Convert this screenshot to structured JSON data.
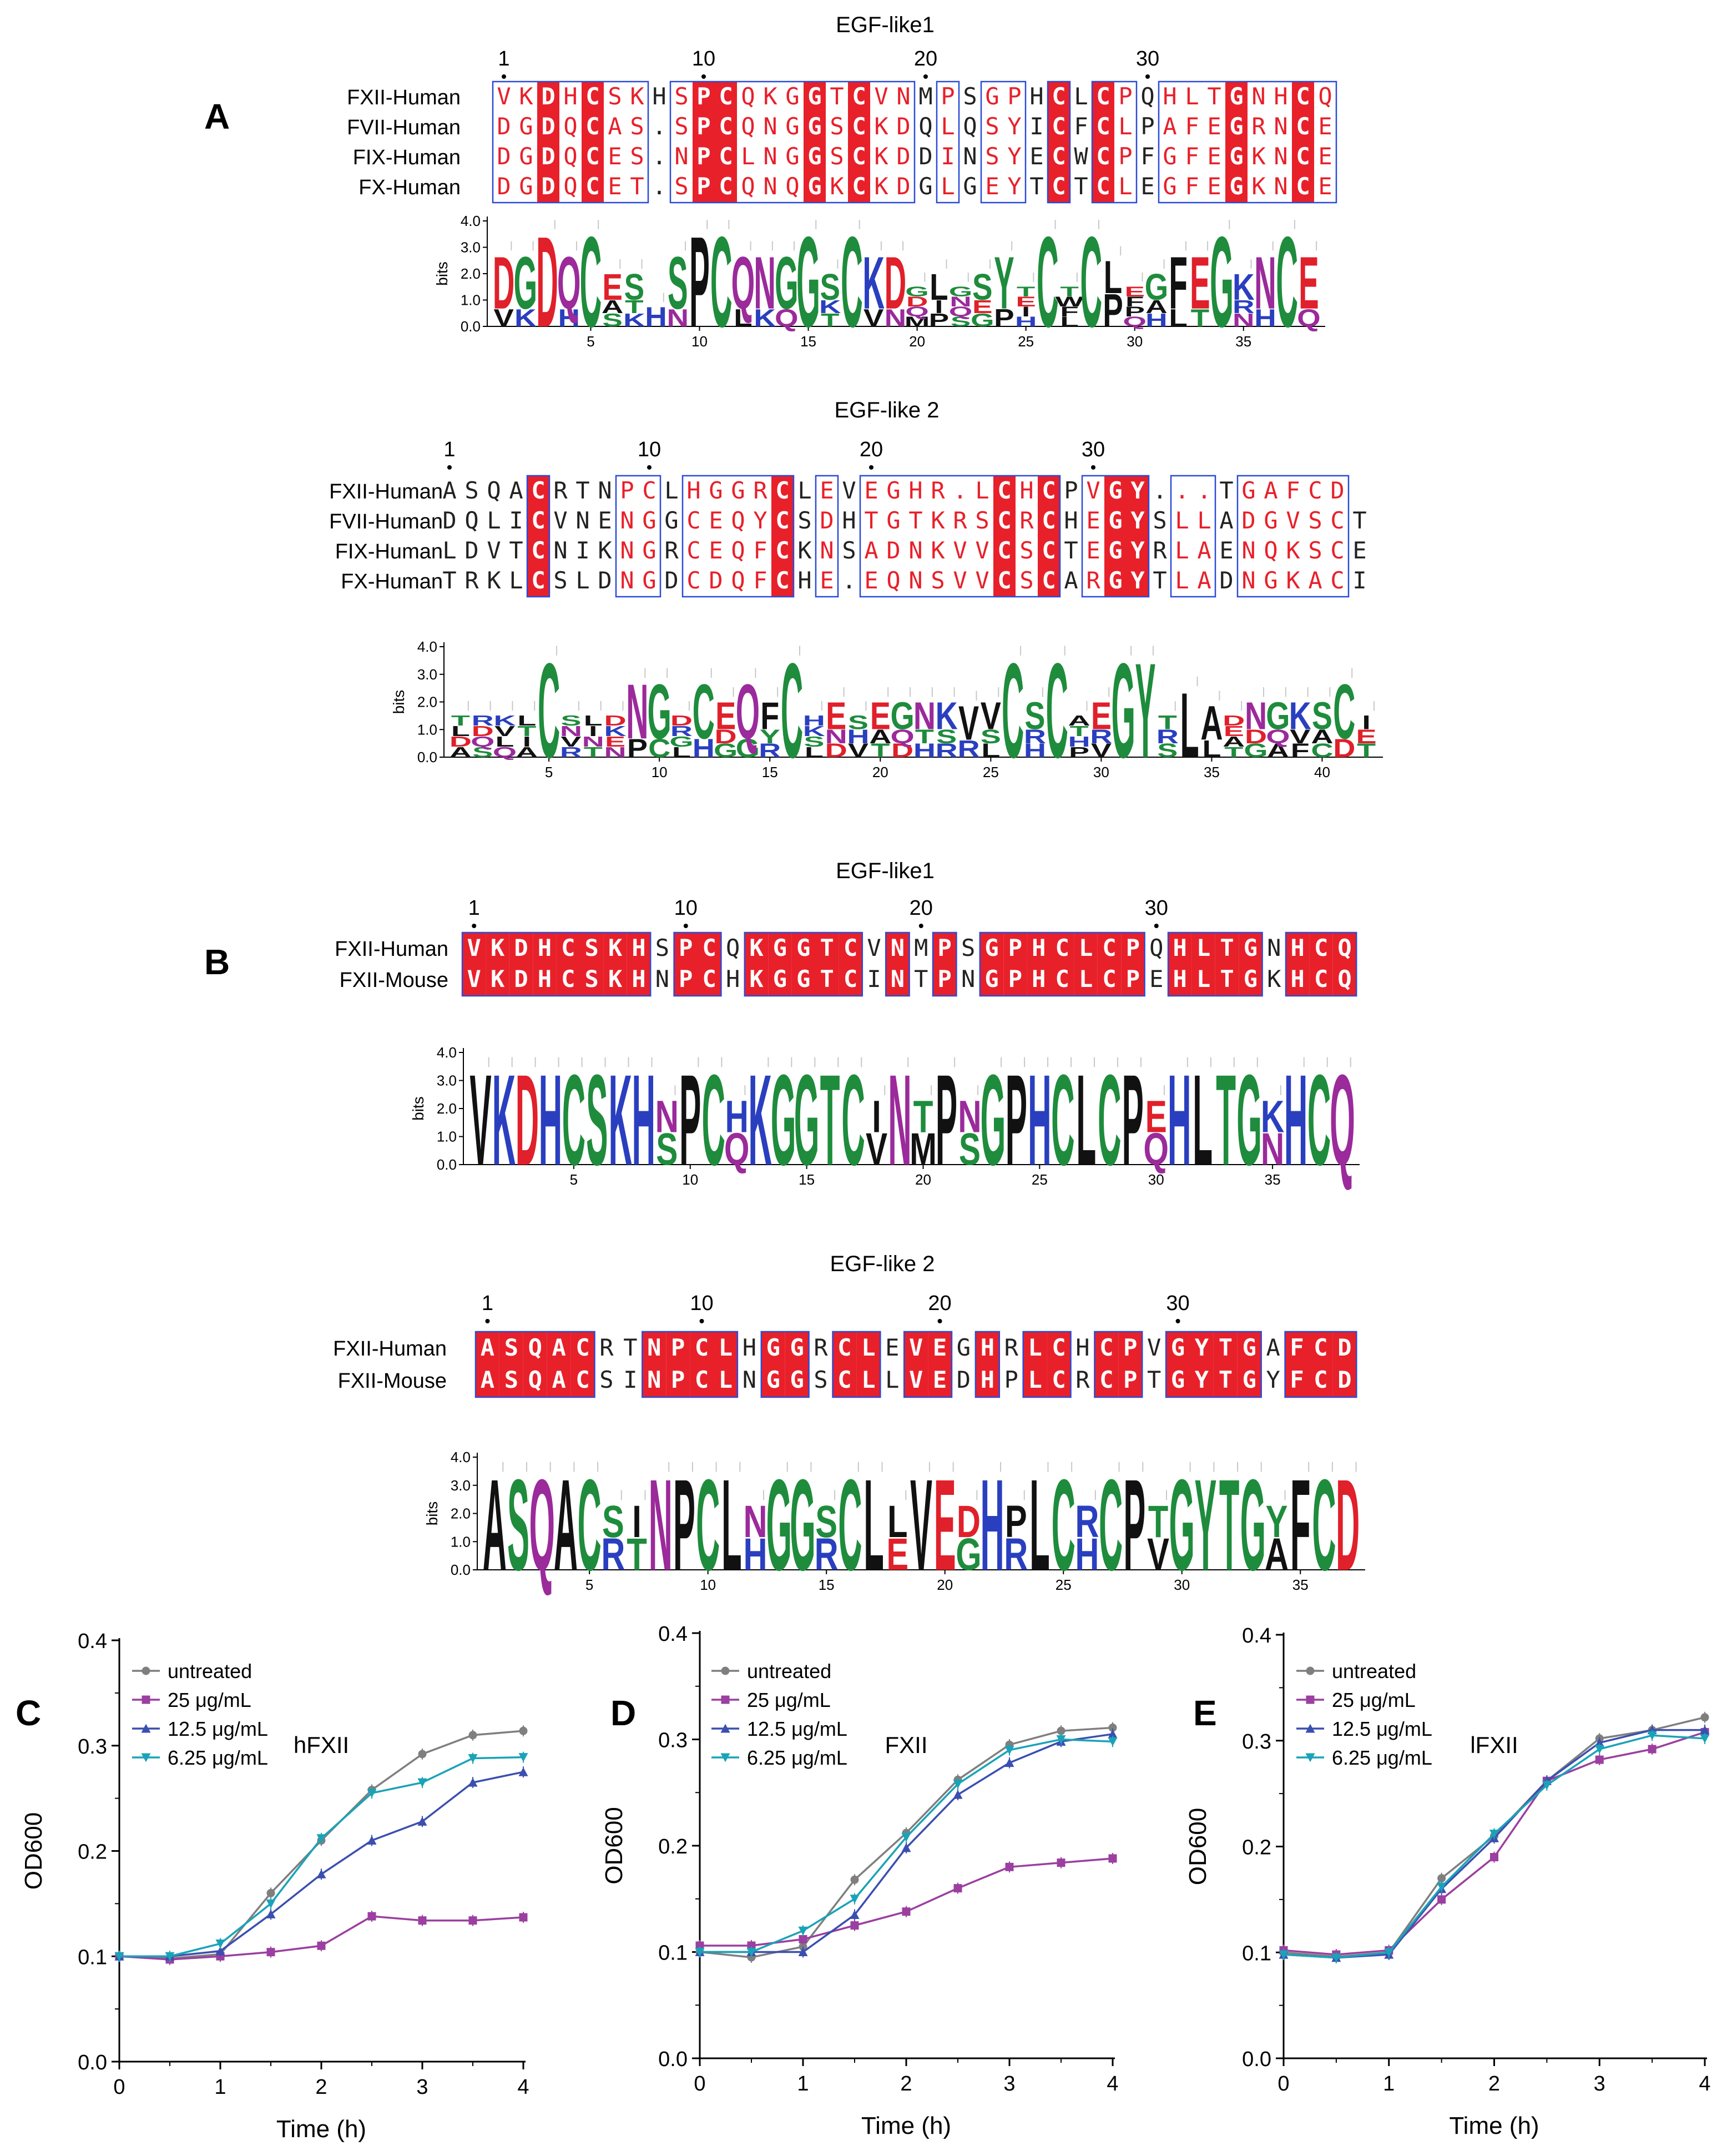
{
  "panels": {
    "A": {
      "label": "A",
      "alignments": [
        {
          "title": "EGF-like1",
          "ruler": [
            "1",
            "10",
            "20",
            "30"
          ],
          "rows": [
            {
              "name": "FXII-Human",
              "seq": "VKDHCSKHSPCQKGGTCVNMPSGPHCLCPQHLTGNHCQ"
            },
            {
              "name": "FVII-Human",
              "seq": "DGDQCAS.SPCQNGGSCKDQLQSYICFCLPAFEGRNCE"
            },
            {
              "name": "FIX-Human",
              "seq": "DGDQCES.NPCLNGGSCKDDINSYECWCPFGFEGKNCE"
            },
            {
              "name": "FX-Human",
              "seq": "DGDQCET.SPCQNQGKCKDGLGEYTCTCLEGFEGKNCE"
            }
          ],
          "logo": {
            "yticks": [
              "0.0",
              "1.0",
              "2.0",
              "3.0",
              "4.0"
            ],
            "ylabel": "bits",
            "xticks": [
              "5",
              "10",
              "15",
              "20",
              "25",
              "30",
              "35"
            ]
          }
        },
        {
          "title": "EGF-like 2",
          "ruler": [
            "1",
            "10",
            "20",
            "30"
          ],
          "rows": [
            {
              "name": "FXII-Human",
              "seq": "ASQACRTNPCLHGGRCLEVEGHR.LCHCPVGY...TGAFCD"
            },
            {
              "name": "FVII-Human",
              "seq": "DQLICVNENGGCEQYCSDHTGTKRSCRCHEGYSLLADGVSCT"
            },
            {
              "name": "FIX-Human",
              "seq": "LDVTCNIKNGRCEQFCKNSADNKVVCSCTEGYRLAENQKSCE"
            },
            {
              "name": "FX-Human",
              "seq": "TRKLCSLDNGDCDQFCHE.EQNSVVCSCARGYTLADNGKACI"
            }
          ],
          "logo": {
            "yticks": [
              "0.0",
              "1.0",
              "2.0",
              "3.0",
              "4.0"
            ],
            "ylabel": "bits",
            "xticks": [
              "5",
              "10",
              "15",
              "20",
              "25",
              "30",
              "35",
              "40"
            ]
          }
        }
      ]
    },
    "B": {
      "label": "B",
      "alignments": [
        {
          "title": "EGF-like1",
          "ruler": [
            "1",
            "10",
            "20",
            "30"
          ],
          "rows": [
            {
              "name": "FXII-Human",
              "seq": "VKDHCSKHSPCQKGGTCVNMPSGPHCLCPQHLTGNHCQ"
            },
            {
              "name": "FXII-Mouse",
              "seq": "VKDHCSKHNPCHKGGTCINTPNGPHCLCPEHLTGKHCQ"
            }
          ],
          "logo": {
            "yticks": [
              "0.0",
              "1.0",
              "2.0",
              "3.0",
              "4.0"
            ],
            "ylabel": "bits",
            "xticks": [
              "5",
              "10",
              "15",
              "20",
              "25",
              "30",
              "35"
            ]
          }
        },
        {
          "title": "EGF-like 2",
          "ruler": [
            "1",
            "10",
            "20",
            "30"
          ],
          "rows": [
            {
              "name": "FXII-Human",
              "seq": "ASQACRTNPCLHGGRCLEVEGHRLCHCPVGYTGAFCD"
            },
            {
              "name": "FXII-Mouse",
              "seq": "ASQACSINPCLNGGSCLLVEDHPLCRCPTGYTGYFCD"
            }
          ],
          "logo": {
            "yticks": [
              "0.0",
              "1.0",
              "2.0",
              "3.0",
              "4.0"
            ],
            "ylabel": "bits",
            "xticks": [
              "5",
              "10",
              "15",
              "20",
              "25",
              "30",
              "35"
            ]
          }
        }
      ]
    }
  },
  "chart_data": [
    {
      "type": "line",
      "panel_label": "C",
      "title": "hFXII",
      "xlabel": "Time (h)",
      "ylabel": "OD600",
      "xlim": [
        0,
        4
      ],
      "ylim": [
        0.0,
        0.4
      ],
      "xticks": [
        "0",
        "1",
        "2",
        "3",
        "4"
      ],
      "yticks": [
        "0.0",
        "0.1",
        "0.2",
        "0.3",
        "0.4"
      ],
      "x": [
        0,
        0.5,
        1,
        1.5,
        2,
        2.5,
        3,
        3.5,
        4
      ],
      "series": [
        {
          "name": "untreated",
          "color": "#7f7f7f",
          "marker": "circle",
          "values": [
            0.1,
            0.098,
            0.102,
            0.16,
            0.21,
            0.258,
            0.292,
            0.31,
            0.314
          ]
        },
        {
          "name": "25 μg/mL",
          "color": "#9b3fa0",
          "marker": "square",
          "values": [
            0.1,
            0.097,
            0.1,
            0.104,
            0.11,
            0.138,
            0.134,
            0.134,
            0.137
          ]
        },
        {
          "name": "12.5 μg/mL",
          "color": "#3b4fb0",
          "marker": "triangle-up",
          "values": [
            0.1,
            0.1,
            0.105,
            0.14,
            0.178,
            0.21,
            0.228,
            0.265,
            0.275
          ]
        },
        {
          "name": "6.25 μg/mL",
          "color": "#1aa3b8",
          "marker": "triangle-down",
          "values": [
            0.1,
            0.1,
            0.112,
            0.15,
            0.212,
            0.255,
            0.265,
            0.288,
            0.289
          ]
        }
      ]
    },
    {
      "type": "line",
      "panel_label": "D",
      "title": "FXII",
      "xlabel": "Time (h)",
      "ylabel": "OD600",
      "xlim": [
        0,
        4
      ],
      "ylim": [
        0.0,
        0.4
      ],
      "xticks": [
        "0",
        "1",
        "2",
        "3",
        "4"
      ],
      "yticks": [
        "0.0",
        "0.1",
        "0.2",
        "0.3",
        "0.4"
      ],
      "x": [
        0,
        0.5,
        1,
        1.5,
        2,
        2.5,
        3,
        3.5,
        4
      ],
      "series": [
        {
          "name": "untreated",
          "color": "#7f7f7f",
          "marker": "circle",
          "values": [
            0.1,
            0.095,
            0.105,
            0.168,
            0.212,
            0.262,
            0.295,
            0.308,
            0.311
          ]
        },
        {
          "name": "25 μg/mL",
          "color": "#9b3fa0",
          "marker": "square",
          "values": [
            0.106,
            0.106,
            0.112,
            0.125,
            0.138,
            0.16,
            0.18,
            0.184,
            0.188
          ]
        },
        {
          "name": "12.5 μg/mL",
          "color": "#3b4fb0",
          "marker": "triangle-up",
          "values": [
            0.1,
            0.1,
            0.1,
            0.135,
            0.198,
            0.248,
            0.278,
            0.298,
            0.305
          ]
        },
        {
          "name": "6.25 μg/mL",
          "color": "#1aa3b8",
          "marker": "triangle-down",
          "values": [
            0.1,
            0.1,
            0.12,
            0.15,
            0.208,
            0.258,
            0.29,
            0.3,
            0.298
          ]
        }
      ]
    },
    {
      "type": "line",
      "panel_label": "E",
      "title": "lFXII",
      "xlabel": "Time (h)",
      "ylabel": "OD600",
      "xlim": [
        0,
        4
      ],
      "ylim": [
        0.0,
        0.4
      ],
      "xticks": [
        "0",
        "1",
        "2",
        "3",
        "4"
      ],
      "yticks": [
        "0.0",
        "0.1",
        "0.2",
        "0.3",
        "0.4"
      ],
      "x": [
        0,
        0.5,
        1,
        1.5,
        2,
        2.5,
        3,
        3.5,
        4
      ],
      "series": [
        {
          "name": "untreated",
          "color": "#7f7f7f",
          "marker": "circle",
          "values": [
            0.1,
            0.096,
            0.1,
            0.17,
            0.21,
            0.262,
            0.302,
            0.31,
            0.322
          ]
        },
        {
          "name": "25 μg/mL",
          "color": "#9b3fa0",
          "marker": "square",
          "values": [
            0.102,
            0.098,
            0.102,
            0.15,
            0.19,
            0.262,
            0.282,
            0.292,
            0.308
          ]
        },
        {
          "name": "12.5 μg/mL",
          "color": "#3b4fb0",
          "marker": "triangle-up",
          "values": [
            0.098,
            0.095,
            0.098,
            0.16,
            0.208,
            0.262,
            0.298,
            0.31,
            0.31
          ]
        },
        {
          "name": "6.25 μg/mL",
          "color": "#1aa3b8",
          "marker": "triangle-down",
          "values": [
            0.098,
            0.095,
            0.1,
            0.162,
            0.212,
            0.258,
            0.292,
            0.305,
            0.302
          ]
        }
      ]
    }
  ],
  "colors": {
    "conserved_bg": "#e8202a",
    "box": "#2b4bd8",
    "similar_text": "#e8202a",
    "logo": {
      "C": "#1e8c3c",
      "G": "#1e8c3c",
      "S": "#1e8c3c",
      "T": "#1e8c3c",
      "Y": "#1e8c3c",
      "N": "#9b2a9b",
      "Q": "#9b2a9b",
      "K": "#2a3fbf",
      "R": "#2a3fbf",
      "H": "#2a3fbf",
      "D": "#e0202a",
      "E": "#e0202a"
    }
  }
}
